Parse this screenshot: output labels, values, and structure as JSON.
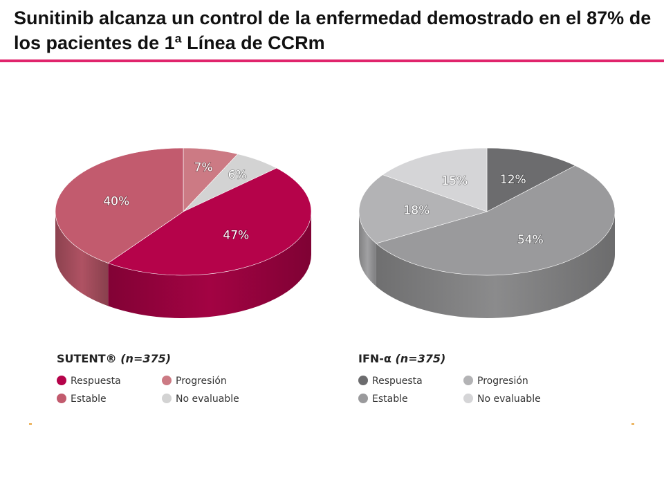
{
  "title": "Sunitinib alcanza un control de la enfermedad demostrado en el 87% de los pacientes de 1ª Línea de CCRm",
  "colors": {
    "accent_rule": "#e0246c"
  },
  "chart_data": [
    {
      "type": "pie",
      "legend_title": "SUTENT®",
      "legend_n": "(n=375)",
      "slices": [
        {
          "label": "Respuesta",
          "value": 47,
          "text": "47%",
          "color": "#b5034a"
        },
        {
          "label": "Estable",
          "value": 40,
          "text": "40%",
          "color": "#c25b6e"
        },
        {
          "label": "Progresión",
          "value": 7,
          "text": "7%",
          "color": "#cc7a84"
        },
        {
          "label": "No evaluable",
          "value": 6,
          "text": "6%",
          "color": "#d3d3d3"
        }
      ],
      "legend_placement": "bottom"
    },
    {
      "type": "pie",
      "legend_title": "IFN-α",
      "legend_n": "(n=375)",
      "slices": [
        {
          "label": "Respuesta",
          "value": 12,
          "text": "12%",
          "color": "#6c6c6e"
        },
        {
          "label": "Estable",
          "value": 54,
          "text": "54%",
          "color": "#9a9a9c"
        },
        {
          "label": "Progresión",
          "value": 18,
          "text": "18%",
          "color": "#b3b3b5"
        },
        {
          "label": "No evaluable",
          "value": 15,
          "text": "15%",
          "color": "#d5d5d7"
        }
      ],
      "legend_placement": "bottom"
    }
  ]
}
